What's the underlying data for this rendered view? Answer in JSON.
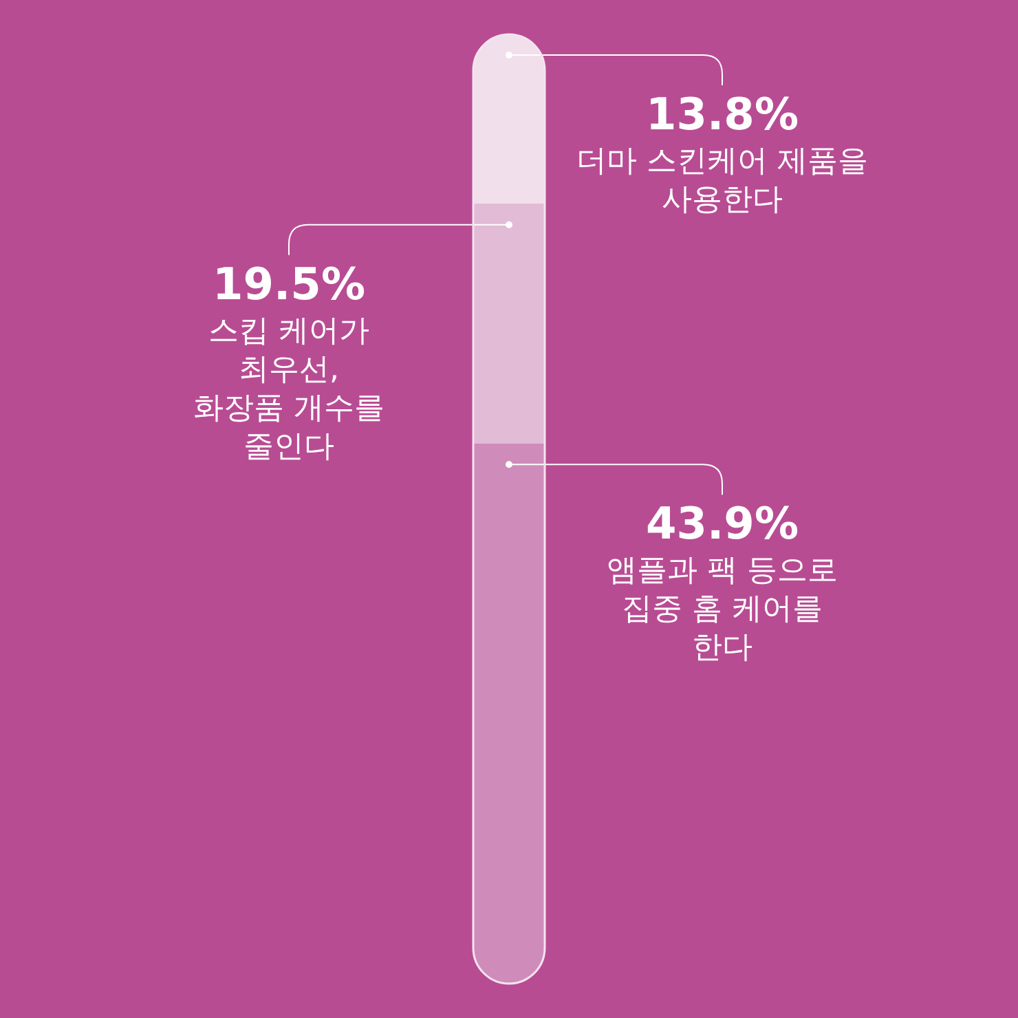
{
  "chart_data": {
    "type": "bar",
    "stacked": true,
    "categories": [
      null
    ],
    "series": [
      {
        "name": "앰플과 팩 등으로\n집중 홈 케어를\n한다",
        "color": "#cf8cba",
        "values": [
          43.9
        ],
        "value_labels": [
          "43.9%"
        ]
      },
      {
        "name": "스킵 케어가\n최우선,\n화장품 개수를\n줄인다",
        "color": "#e2bbd6",
        "values": [
          19.5
        ],
        "value_labels": [
          "19.5%"
        ]
      },
      {
        "name": "더마 스킨케어 제품을\n사용한다",
        "color": "#f1dfec",
        "values": [
          13.8
        ],
        "value_labels": [
          "13.8%"
        ]
      }
    ]
  }
}
